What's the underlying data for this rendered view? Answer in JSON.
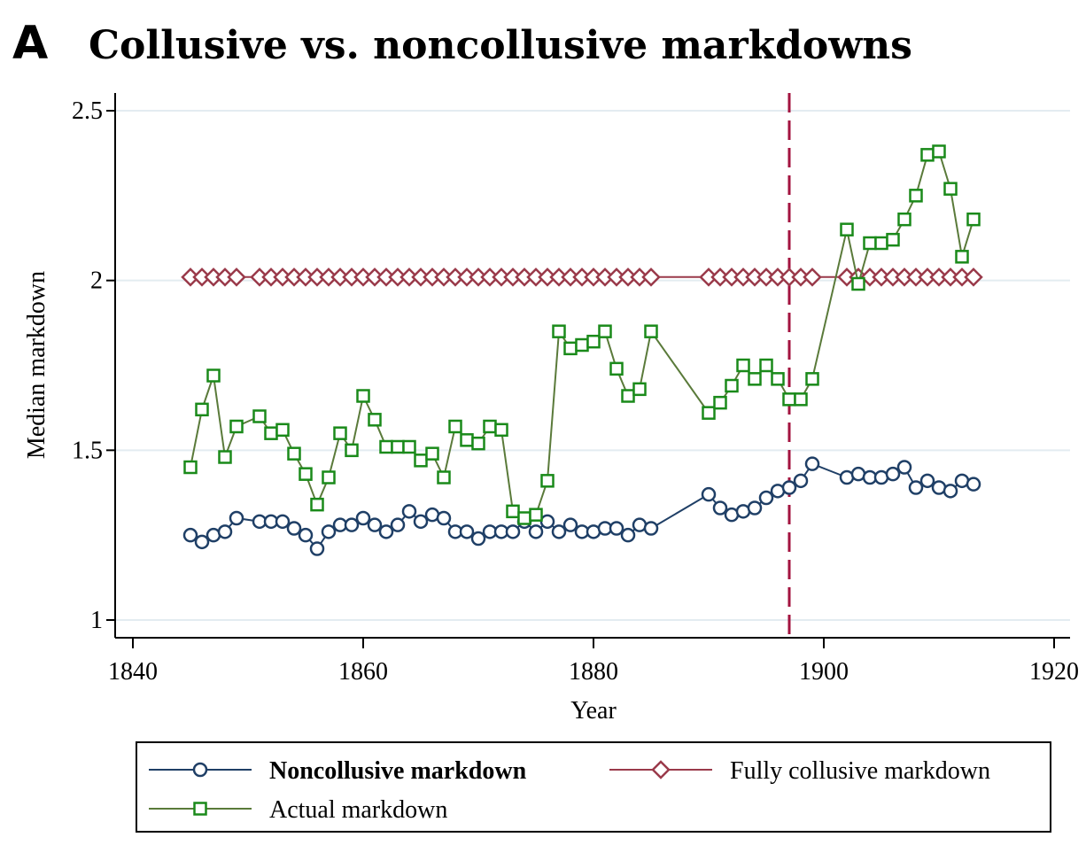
{
  "panel_letter": "A",
  "chart_data": {
    "type": "line",
    "title": "Collusive vs. noncollusive markdowns",
    "xlabel": "Year",
    "ylabel": "Median markdown",
    "xlim": [
      1840,
      1920
    ],
    "ylim": [
      1,
      2.5
    ],
    "x_ticks": [
      {
        "value": 1840,
        "label": "1840"
      },
      {
        "value": 1860,
        "label": "1860"
      },
      {
        "value": 1880,
        "label": "1880"
      },
      {
        "value": 1900,
        "label": "1900"
      },
      {
        "value": 1920,
        "label": "1920"
      }
    ],
    "y_ticks": [
      {
        "value": 1,
        "label": "1"
      },
      {
        "value": 1.5,
        "label": "1.5"
      },
      {
        "value": 2,
        "label": "2"
      },
      {
        "value": 2.5,
        "label": "2.5"
      }
    ],
    "grid": "horizontal",
    "reference_line": {
      "x": 1897,
      "color": "#a3133f",
      "style": "dashed"
    },
    "legend_position": "bottom",
    "series": [
      {
        "name": "Noncollusive markdown",
        "color": "#1f3f66",
        "marker": "circle",
        "points": [
          [
            1845,
            1.25
          ],
          [
            1846,
            1.23
          ],
          [
            1847,
            1.25
          ],
          [
            1848,
            1.26
          ],
          [
            1849,
            1.3
          ],
          [
            1851,
            1.29
          ],
          [
            1852,
            1.29
          ],
          [
            1853,
            1.29
          ],
          [
            1854,
            1.27
          ],
          [
            1855,
            1.25
          ],
          [
            1856,
            1.21
          ],
          [
            1857,
            1.26
          ],
          [
            1858,
            1.28
          ],
          [
            1859,
            1.28
          ],
          [
            1860,
            1.3
          ],
          [
            1861,
            1.28
          ],
          [
            1862,
            1.26
          ],
          [
            1863,
            1.28
          ],
          [
            1864,
            1.32
          ],
          [
            1865,
            1.29
          ],
          [
            1866,
            1.31
          ],
          [
            1867,
            1.3
          ],
          [
            1868,
            1.26
          ],
          [
            1869,
            1.26
          ],
          [
            1870,
            1.24
          ],
          [
            1871,
            1.26
          ],
          [
            1872,
            1.26
          ],
          [
            1873,
            1.26
          ],
          [
            1874,
            1.29
          ],
          [
            1875,
            1.26
          ],
          [
            1876,
            1.29
          ],
          [
            1877,
            1.26
          ],
          [
            1878,
            1.28
          ],
          [
            1879,
            1.26
          ],
          [
            1880,
            1.26
          ],
          [
            1881,
            1.27
          ],
          [
            1882,
            1.27
          ],
          [
            1883,
            1.25
          ],
          [
            1884,
            1.28
          ],
          [
            1885,
            1.27
          ],
          [
            1890,
            1.37
          ],
          [
            1891,
            1.33
          ],
          [
            1892,
            1.31
          ],
          [
            1893,
            1.32
          ],
          [
            1894,
            1.33
          ],
          [
            1895,
            1.36
          ],
          [
            1896,
            1.38
          ],
          [
            1897,
            1.39
          ],
          [
            1898,
            1.41
          ],
          [
            1899,
            1.46
          ],
          [
            1902,
            1.42
          ],
          [
            1903,
            1.43
          ],
          [
            1904,
            1.42
          ],
          [
            1905,
            1.42
          ],
          [
            1906,
            1.43
          ],
          [
            1907,
            1.45
          ],
          [
            1908,
            1.39
          ],
          [
            1909,
            1.41
          ],
          [
            1910,
            1.39
          ],
          [
            1911,
            1.38
          ],
          [
            1912,
            1.41
          ],
          [
            1913,
            1.4
          ]
        ]
      },
      {
        "name": "Fully collusive markdown",
        "color": "#9a3a4a",
        "marker": "diamond",
        "points": [
          [
            1845,
            2.01
          ],
          [
            1846,
            2.01
          ],
          [
            1847,
            2.01
          ],
          [
            1848,
            2.01
          ],
          [
            1849,
            2.01
          ],
          [
            1851,
            2.01
          ],
          [
            1852,
            2.01
          ],
          [
            1853,
            2.01
          ],
          [
            1854,
            2.01
          ],
          [
            1855,
            2.01
          ],
          [
            1856,
            2.01
          ],
          [
            1857,
            2.01
          ],
          [
            1858,
            2.01
          ],
          [
            1859,
            2.01
          ],
          [
            1860,
            2.01
          ],
          [
            1861,
            2.01
          ],
          [
            1862,
            2.01
          ],
          [
            1863,
            2.01
          ],
          [
            1864,
            2.01
          ],
          [
            1865,
            2.01
          ],
          [
            1866,
            2.01
          ],
          [
            1867,
            2.01
          ],
          [
            1868,
            2.01
          ],
          [
            1869,
            2.01
          ],
          [
            1870,
            2.01
          ],
          [
            1871,
            2.01
          ],
          [
            1872,
            2.01
          ],
          [
            1873,
            2.01
          ],
          [
            1874,
            2.01
          ],
          [
            1875,
            2.01
          ],
          [
            1876,
            2.01
          ],
          [
            1877,
            2.01
          ],
          [
            1878,
            2.01
          ],
          [
            1879,
            2.01
          ],
          [
            1880,
            2.01
          ],
          [
            1881,
            2.01
          ],
          [
            1882,
            2.01
          ],
          [
            1883,
            2.01
          ],
          [
            1884,
            2.01
          ],
          [
            1885,
            2.01
          ],
          [
            1890,
            2.01
          ],
          [
            1891,
            2.01
          ],
          [
            1892,
            2.01
          ],
          [
            1893,
            2.01
          ],
          [
            1894,
            2.01
          ],
          [
            1895,
            2.01
          ],
          [
            1896,
            2.01
          ],
          [
            1897,
            2.01
          ],
          [
            1898,
            2.01
          ],
          [
            1899,
            2.01
          ],
          [
            1902,
            2.01
          ],
          [
            1903,
            2.01
          ],
          [
            1904,
            2.01
          ],
          [
            1905,
            2.01
          ],
          [
            1906,
            2.01
          ],
          [
            1907,
            2.01
          ],
          [
            1908,
            2.01
          ],
          [
            1909,
            2.01
          ],
          [
            1910,
            2.01
          ],
          [
            1911,
            2.01
          ],
          [
            1912,
            2.01
          ],
          [
            1913,
            2.01
          ]
        ]
      },
      {
        "name": "Actual markdown",
        "color": "#5a7a3a",
        "marker_color": "#1a8a1a",
        "marker": "square",
        "points": [
          [
            1845,
            1.45
          ],
          [
            1846,
            1.62
          ],
          [
            1847,
            1.72
          ],
          [
            1848,
            1.48
          ],
          [
            1849,
            1.57
          ],
          [
            1851,
            1.6
          ],
          [
            1852,
            1.55
          ],
          [
            1853,
            1.56
          ],
          [
            1854,
            1.49
          ],
          [
            1855,
            1.43
          ],
          [
            1856,
            1.34
          ],
          [
            1857,
            1.42
          ],
          [
            1858,
            1.55
          ],
          [
            1859,
            1.5
          ],
          [
            1860,
            1.66
          ],
          [
            1861,
            1.59
          ],
          [
            1862,
            1.51
          ],
          [
            1863,
            1.51
          ],
          [
            1864,
            1.51
          ],
          [
            1865,
            1.47
          ],
          [
            1866,
            1.49
          ],
          [
            1867,
            1.42
          ],
          [
            1868,
            1.57
          ],
          [
            1869,
            1.53
          ],
          [
            1870,
            1.52
          ],
          [
            1871,
            1.57
          ],
          [
            1872,
            1.56
          ],
          [
            1873,
            1.32
          ],
          [
            1874,
            1.3
          ],
          [
            1875,
            1.31
          ],
          [
            1876,
            1.41
          ],
          [
            1877,
            1.85
          ],
          [
            1878,
            1.8
          ],
          [
            1879,
            1.81
          ],
          [
            1880,
            1.82
          ],
          [
            1881,
            1.85
          ],
          [
            1882,
            1.74
          ],
          [
            1883,
            1.66
          ],
          [
            1884,
            1.68
          ],
          [
            1885,
            1.85
          ],
          [
            1890,
            1.61
          ],
          [
            1891,
            1.64
          ],
          [
            1892,
            1.69
          ],
          [
            1893,
            1.75
          ],
          [
            1894,
            1.71
          ],
          [
            1895,
            1.75
          ],
          [
            1896,
            1.71
          ],
          [
            1897,
            1.65
          ],
          [
            1898,
            1.65
          ],
          [
            1899,
            1.71
          ],
          [
            1902,
            2.15
          ],
          [
            1903,
            1.99
          ],
          [
            1904,
            2.11
          ],
          [
            1905,
            2.11
          ],
          [
            1906,
            2.12
          ],
          [
            1907,
            2.18
          ],
          [
            1908,
            2.25
          ],
          [
            1909,
            2.37
          ],
          [
            1910,
            2.38
          ],
          [
            1911,
            2.27
          ],
          [
            1912,
            2.07
          ],
          [
            1913,
            2.18
          ]
        ]
      }
    ]
  }
}
